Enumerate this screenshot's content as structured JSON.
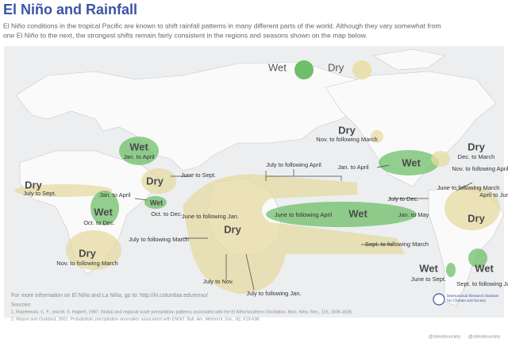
{
  "title": "El Niño and Rainfall",
  "intro": [
    "El Niño conditions in the tropical Pacific are known to shift rainfall patterns in many different parts of the world. Although they vary somewhat from",
    "one El Niño to the next, the strongest shifts remain fairly consistent in the regions and seasons shown on the map below."
  ],
  "legend": {
    "wet": "Wet",
    "dry": "Dry"
  },
  "labels": [
    "Wet",
    "Dry",
    "Dry",
    "Wet",
    "Wet",
    "Dry",
    "Dry",
    "Wet",
    "Dry",
    "Wet",
    "Dry",
    "Dry",
    "Wet",
    "Wet"
  ],
  "seasons": [
    "Jan. to April",
    "June to Sept.",
    "July to Sept.",
    "Jan. to April",
    "Oct. to Dec.",
    "Oct. to Dec.",
    "Nov. to following March",
    "June to following Jan.",
    "July to following March",
    "July to Nov.",
    "July to following Jan.",
    "July to following April",
    "June to following April",
    "Jan. to May",
    "Sept. to following March",
    "Nov. to following March",
    "Jan. to April",
    "Dec. to March",
    "Nov. to following April",
    "June to following March",
    "July to Dec.",
    "April to June",
    "June to Sept.",
    "Sept. to following Jan."
  ],
  "footer": {
    "more_info": "For more information on El Niño and La Niña, go to: http://iri.columbia.edu/enso/",
    "sources_heading": "Sources:",
    "sources": [
      "1. Ropelewski, C. F., and M. S. Halpert, 1987: Global and regional scale precipitation patterns associated with the El Niño/Southern Oscillation. Mon. Wea. Rev., 115, 1606-1626.",
      "2. Mason and Goddard, 2001. Probabilistic precipitation anomalies associated with ENSO. Bull. Am. Meteorol. Soc., 82, 619-638."
    ],
    "org": "International Research Institute for Climate and Society",
    "social": [
      "@climatesociety",
      "@climatesociety"
    ]
  }
}
